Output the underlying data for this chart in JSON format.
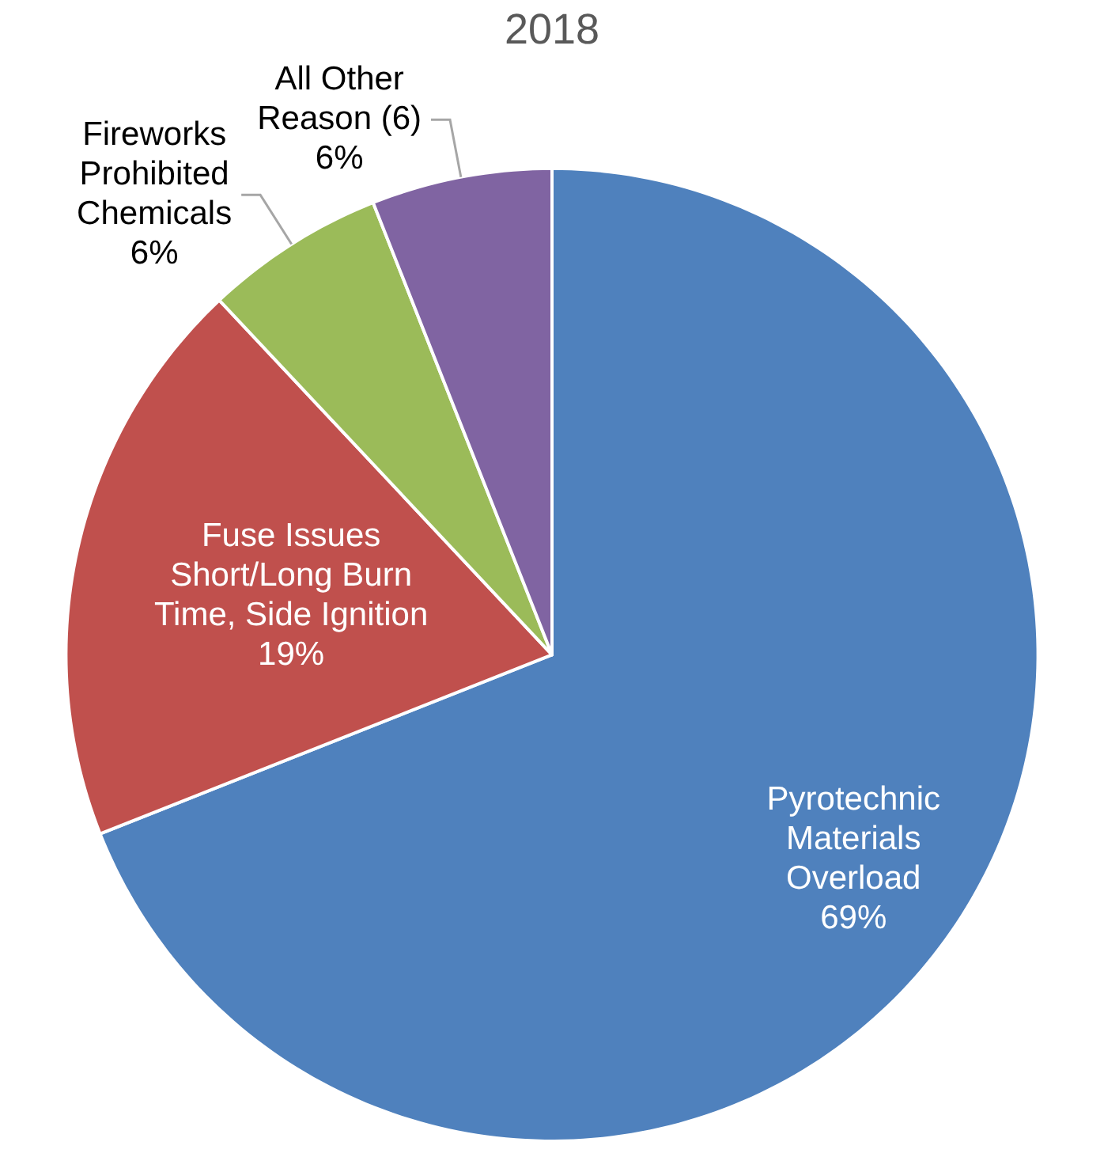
{
  "chart_data": {
    "type": "pie",
    "title": "2018",
    "categories": [
      "Pyrotechnic Materials Overload",
      "Fuse Issues Short/Long Burn Time, Side Ignition",
      "Fireworks Prohibited Chemicals",
      "All Other Reason (6)"
    ],
    "values": [
      69,
      19,
      6,
      6
    ],
    "colors": [
      "#4f81bd",
      "#c0504d",
      "#9bbb59",
      "#8064a2"
    ],
    "value_labels": [
      "69%",
      "19%",
      "6%",
      "6%"
    ],
    "legend": false
  }
}
